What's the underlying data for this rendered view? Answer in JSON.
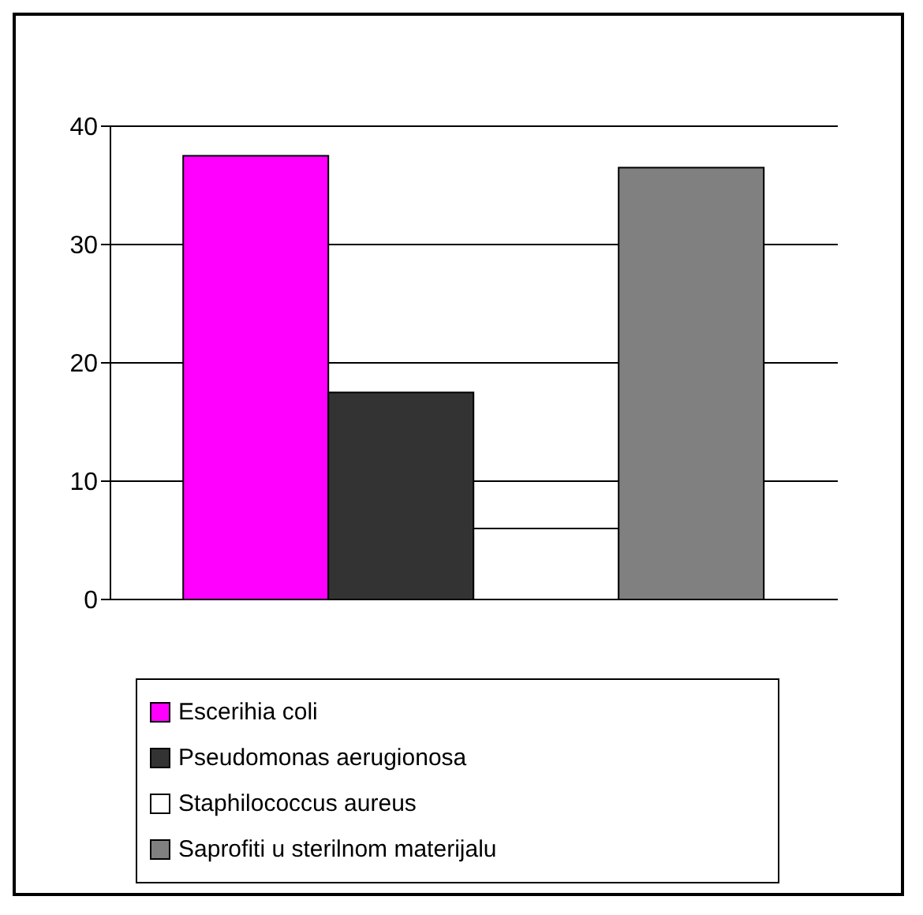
{
  "chart_data": {
    "type": "bar",
    "categories": [
      null
    ],
    "series": [
      {
        "name": "Escerihia coli",
        "color": "#ff00ff",
        "values": [
          37.5
        ]
      },
      {
        "name": "Pseudomonas aerugionosa",
        "color": "#333333",
        "values": [
          17.5
        ]
      },
      {
        "name": "Staphilococcus aureus",
        "color": "#ffffff",
        "values": [
          6
        ]
      },
      {
        "name": "Saprofiti u sterilnom materijalu",
        "color": "#808080",
        "values": [
          36.5
        ]
      }
    ],
    "ylim": [
      0,
      40
    ],
    "yticks": [
      0,
      10,
      20,
      30,
      40
    ],
    "grid": "y",
    "legend": "bottom"
  }
}
